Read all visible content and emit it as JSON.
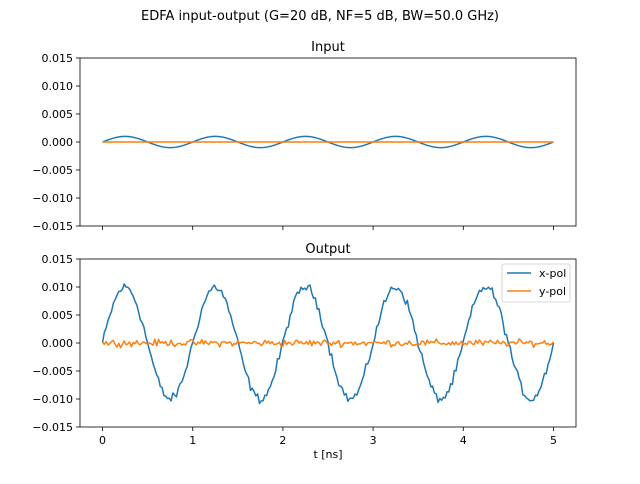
{
  "suptitle": "EDFA input-output (G=20 dB, NF=5 dB, BW=50.0 GHz)",
  "colors": {
    "xpol": "#1f77b4",
    "ypol": "#ff7f0e"
  },
  "chart_data": [
    {
      "type": "line",
      "title": "Input",
      "xlim": [
        -0.25,
        5.25
      ],
      "ylim": [
        -0.015,
        0.015
      ],
      "xticks": [
        "0",
        "1",
        "2",
        "3",
        "4",
        "5"
      ],
      "yticks": [
        "0.015",
        "0.010",
        "0.005",
        "0.000",
        "−0.005",
        "−0.010",
        "−0.015"
      ],
      "xlabel": "",
      "ylabel": "",
      "grid": false,
      "series": [
        {
          "name": "x-pol",
          "model": "0.001*sin(2*pi*t)",
          "x_range": [
            0,
            5
          ],
          "samples": 251
        },
        {
          "name": "y-pol",
          "model": "0",
          "x_range": [
            0,
            5
          ],
          "samples": 251
        }
      ]
    },
    {
      "type": "line",
      "title": "Output",
      "xlim": [
        -0.25,
        5.25
      ],
      "ylim": [
        -0.015,
        0.015
      ],
      "xticks": [
        "0",
        "1",
        "2",
        "3",
        "4",
        "5"
      ],
      "yticks": [
        "0.015",
        "0.010",
        "0.005",
        "0.000",
        "−0.005",
        "−0.010",
        "−0.015"
      ],
      "xlabel": "t [ns]",
      "ylabel": "",
      "grid": false,
      "legend": {
        "position": "top-right",
        "entries": [
          "x-pol",
          "y-pol"
        ]
      },
      "series": [
        {
          "name": "x-pol",
          "model": "0.01*sin(2*pi*t) + noise(±0.0012)",
          "x_range": [
            0,
            5
          ],
          "samples": 251
        },
        {
          "name": "y-pol",
          "model": "0 + noise(±0.0009)",
          "x_range": [
            0,
            5
          ],
          "samples": 251
        }
      ]
    }
  ]
}
